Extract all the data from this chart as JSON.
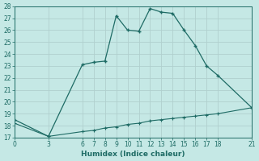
{
  "xlabel": "Humidex (Indice chaleur)",
  "ylabel": "",
  "bg_color": "#c5e8e5",
  "grid_color": "#b0d0ce",
  "line_color": "#1e6b65",
  "line1_x": [
    0,
    3,
    6,
    7,
    8,
    9,
    10,
    11,
    12,
    13,
    14,
    15,
    16,
    17,
    18,
    21
  ],
  "line1_y": [
    18.5,
    17.1,
    23.1,
    23.3,
    23.4,
    27.2,
    26.0,
    25.9,
    27.8,
    27.5,
    27.4,
    26.0,
    24.7,
    23.0,
    22.2,
    19.5
  ],
  "line2_x": [
    0,
    3,
    6,
    7,
    8,
    9,
    10,
    11,
    12,
    13,
    14,
    15,
    16,
    17,
    18,
    21
  ],
  "line2_y": [
    18.2,
    17.1,
    17.5,
    17.6,
    17.8,
    17.9,
    18.1,
    18.2,
    18.4,
    18.5,
    18.6,
    18.7,
    18.8,
    18.9,
    19.0,
    19.5
  ],
  "xlim": [
    0,
    21
  ],
  "ylim": [
    17,
    28
  ],
  "yticks": [
    17,
    18,
    19,
    20,
    21,
    22,
    23,
    24,
    25,
    26,
    27,
    28
  ],
  "xticks": [
    0,
    3,
    6,
    7,
    8,
    9,
    10,
    11,
    12,
    13,
    14,
    15,
    16,
    17,
    18,
    21
  ],
  "xtick_labels": [
    "0",
    "3",
    "6",
    "7",
    "8",
    "9",
    "10",
    "11",
    "12",
    "13",
    "14",
    "15",
    "16",
    "17",
    "18",
    "21"
  ],
  "ytick_labels": [
    "17",
    "18",
    "19",
    "20",
    "21",
    "22",
    "23",
    "24",
    "25",
    "26",
    "27",
    "28"
  ],
  "tick_fontsize": 5.5,
  "xlabel_fontsize": 6.5
}
